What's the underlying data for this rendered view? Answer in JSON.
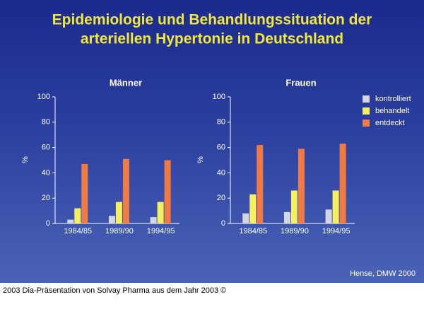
{
  "header": {
    "title_lines": [
      "Epidemiologie und Behandlungssituation der",
      "arteriellen Hypertonie in Deutschland"
    ]
  },
  "source": "Hense, DMW 2000",
  "caption": "2003 Dia-Präsentation von Solvay Pharma aus dem Jahr 2003 ©",
  "chart_data": [
    {
      "type": "bar",
      "title": "Männer",
      "y_label": "%",
      "categories": [
        "1984/85",
        "1989/90",
        "1994/95"
      ],
      "series": [
        {
          "color": "#d4d6e6",
          "values": [
            3,
            6,
            5
          ]
        },
        {
          "color": "#f4f060",
          "values": [
            12,
            17,
            17
          ]
        },
        {
          "color": "#f07a44",
          "values": [
            47,
            51,
            50
          ]
        }
      ],
      "ylim": [
        0,
        100
      ],
      "yticks": [
        0,
        20,
        40,
        60,
        80,
        100
      ]
    },
    {
      "type": "bar",
      "title": "Frauen",
      "y_label": "%",
      "categories": [
        "1984/85",
        "1989/90",
        "1994/95"
      ],
      "series": [
        {
          "name": "kontrolliert",
          "color": "#d4d6e6",
          "values": [
            8,
            9,
            11
          ]
        },
        {
          "name": "behandelt",
          "color": "#f4f060",
          "values": [
            23,
            26,
            26
          ]
        },
        {
          "name": "entdeckt",
          "color": "#f07a44",
          "values": [
            62,
            59,
            63
          ]
        }
      ],
      "ylim": [
        0,
        100
      ],
      "yticks": [
        0,
        20,
        40,
        60,
        80,
        100
      ],
      "legend": "top-right"
    }
  ]
}
